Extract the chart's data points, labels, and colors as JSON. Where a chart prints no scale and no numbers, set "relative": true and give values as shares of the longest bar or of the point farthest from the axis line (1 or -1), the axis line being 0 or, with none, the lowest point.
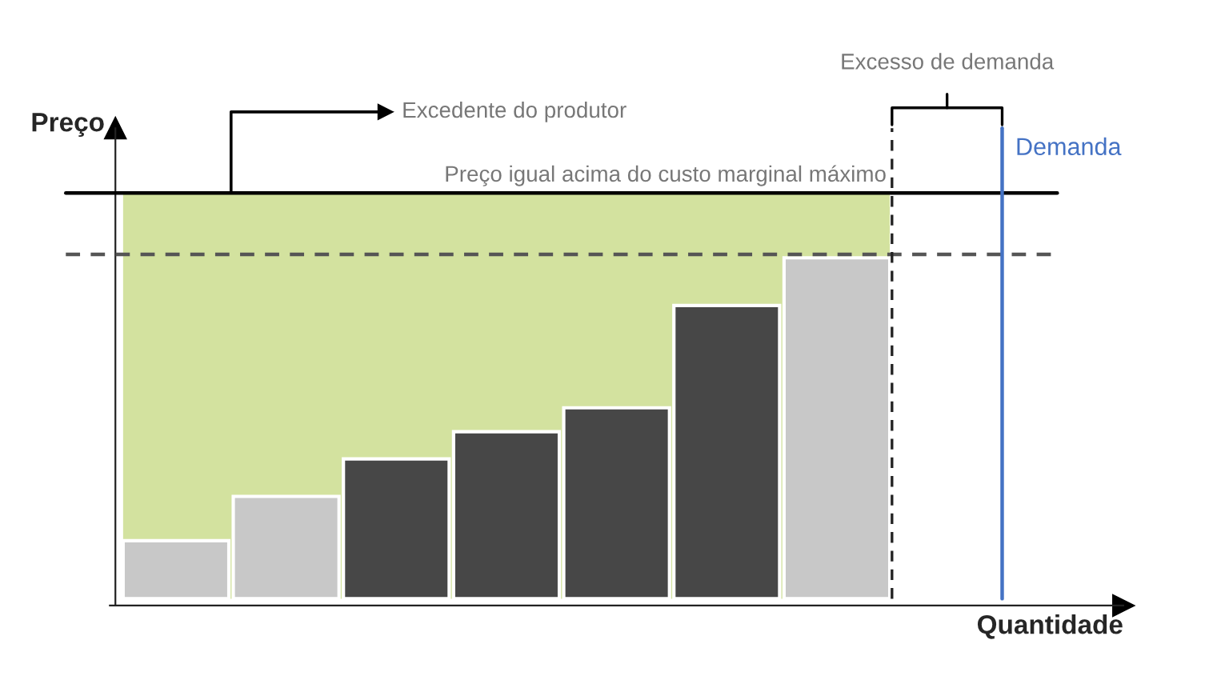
{
  "chart_data": {
    "type": "bar",
    "relative": true,
    "xlabel": "Quantidade",
    "ylabel": "Preço",
    "categories": [
      null,
      null,
      null,
      null,
      null,
      null,
      null
    ],
    "values": [
      0.17,
      0.3,
      0.41,
      0.49,
      0.56,
      0.86,
      1.0
    ],
    "colors": [
      "#c8c8c8",
      "#c8c8c8",
      "#474747",
      "#474747",
      "#474747",
      "#474747",
      "#c8c8c8"
    ],
    "bands": [
      {
        "axis": "y",
        "from": 0,
        "to": 1.19,
        "color": "#d3e29f"
      }
    ],
    "ref_lines": [
      {
        "axis": "y",
        "value": 1.19,
        "label": "Preço igual acima do custo marginal máximo",
        "color": "#000000",
        "line_style": "solid"
      },
      {
        "axis": "y",
        "value": 1.01,
        "color": "#555555",
        "line_style": "dashed"
      }
    ],
    "annotations": [
      "Excedente do produtor",
      "Excesso de demanda",
      "Demanda"
    ]
  }
}
